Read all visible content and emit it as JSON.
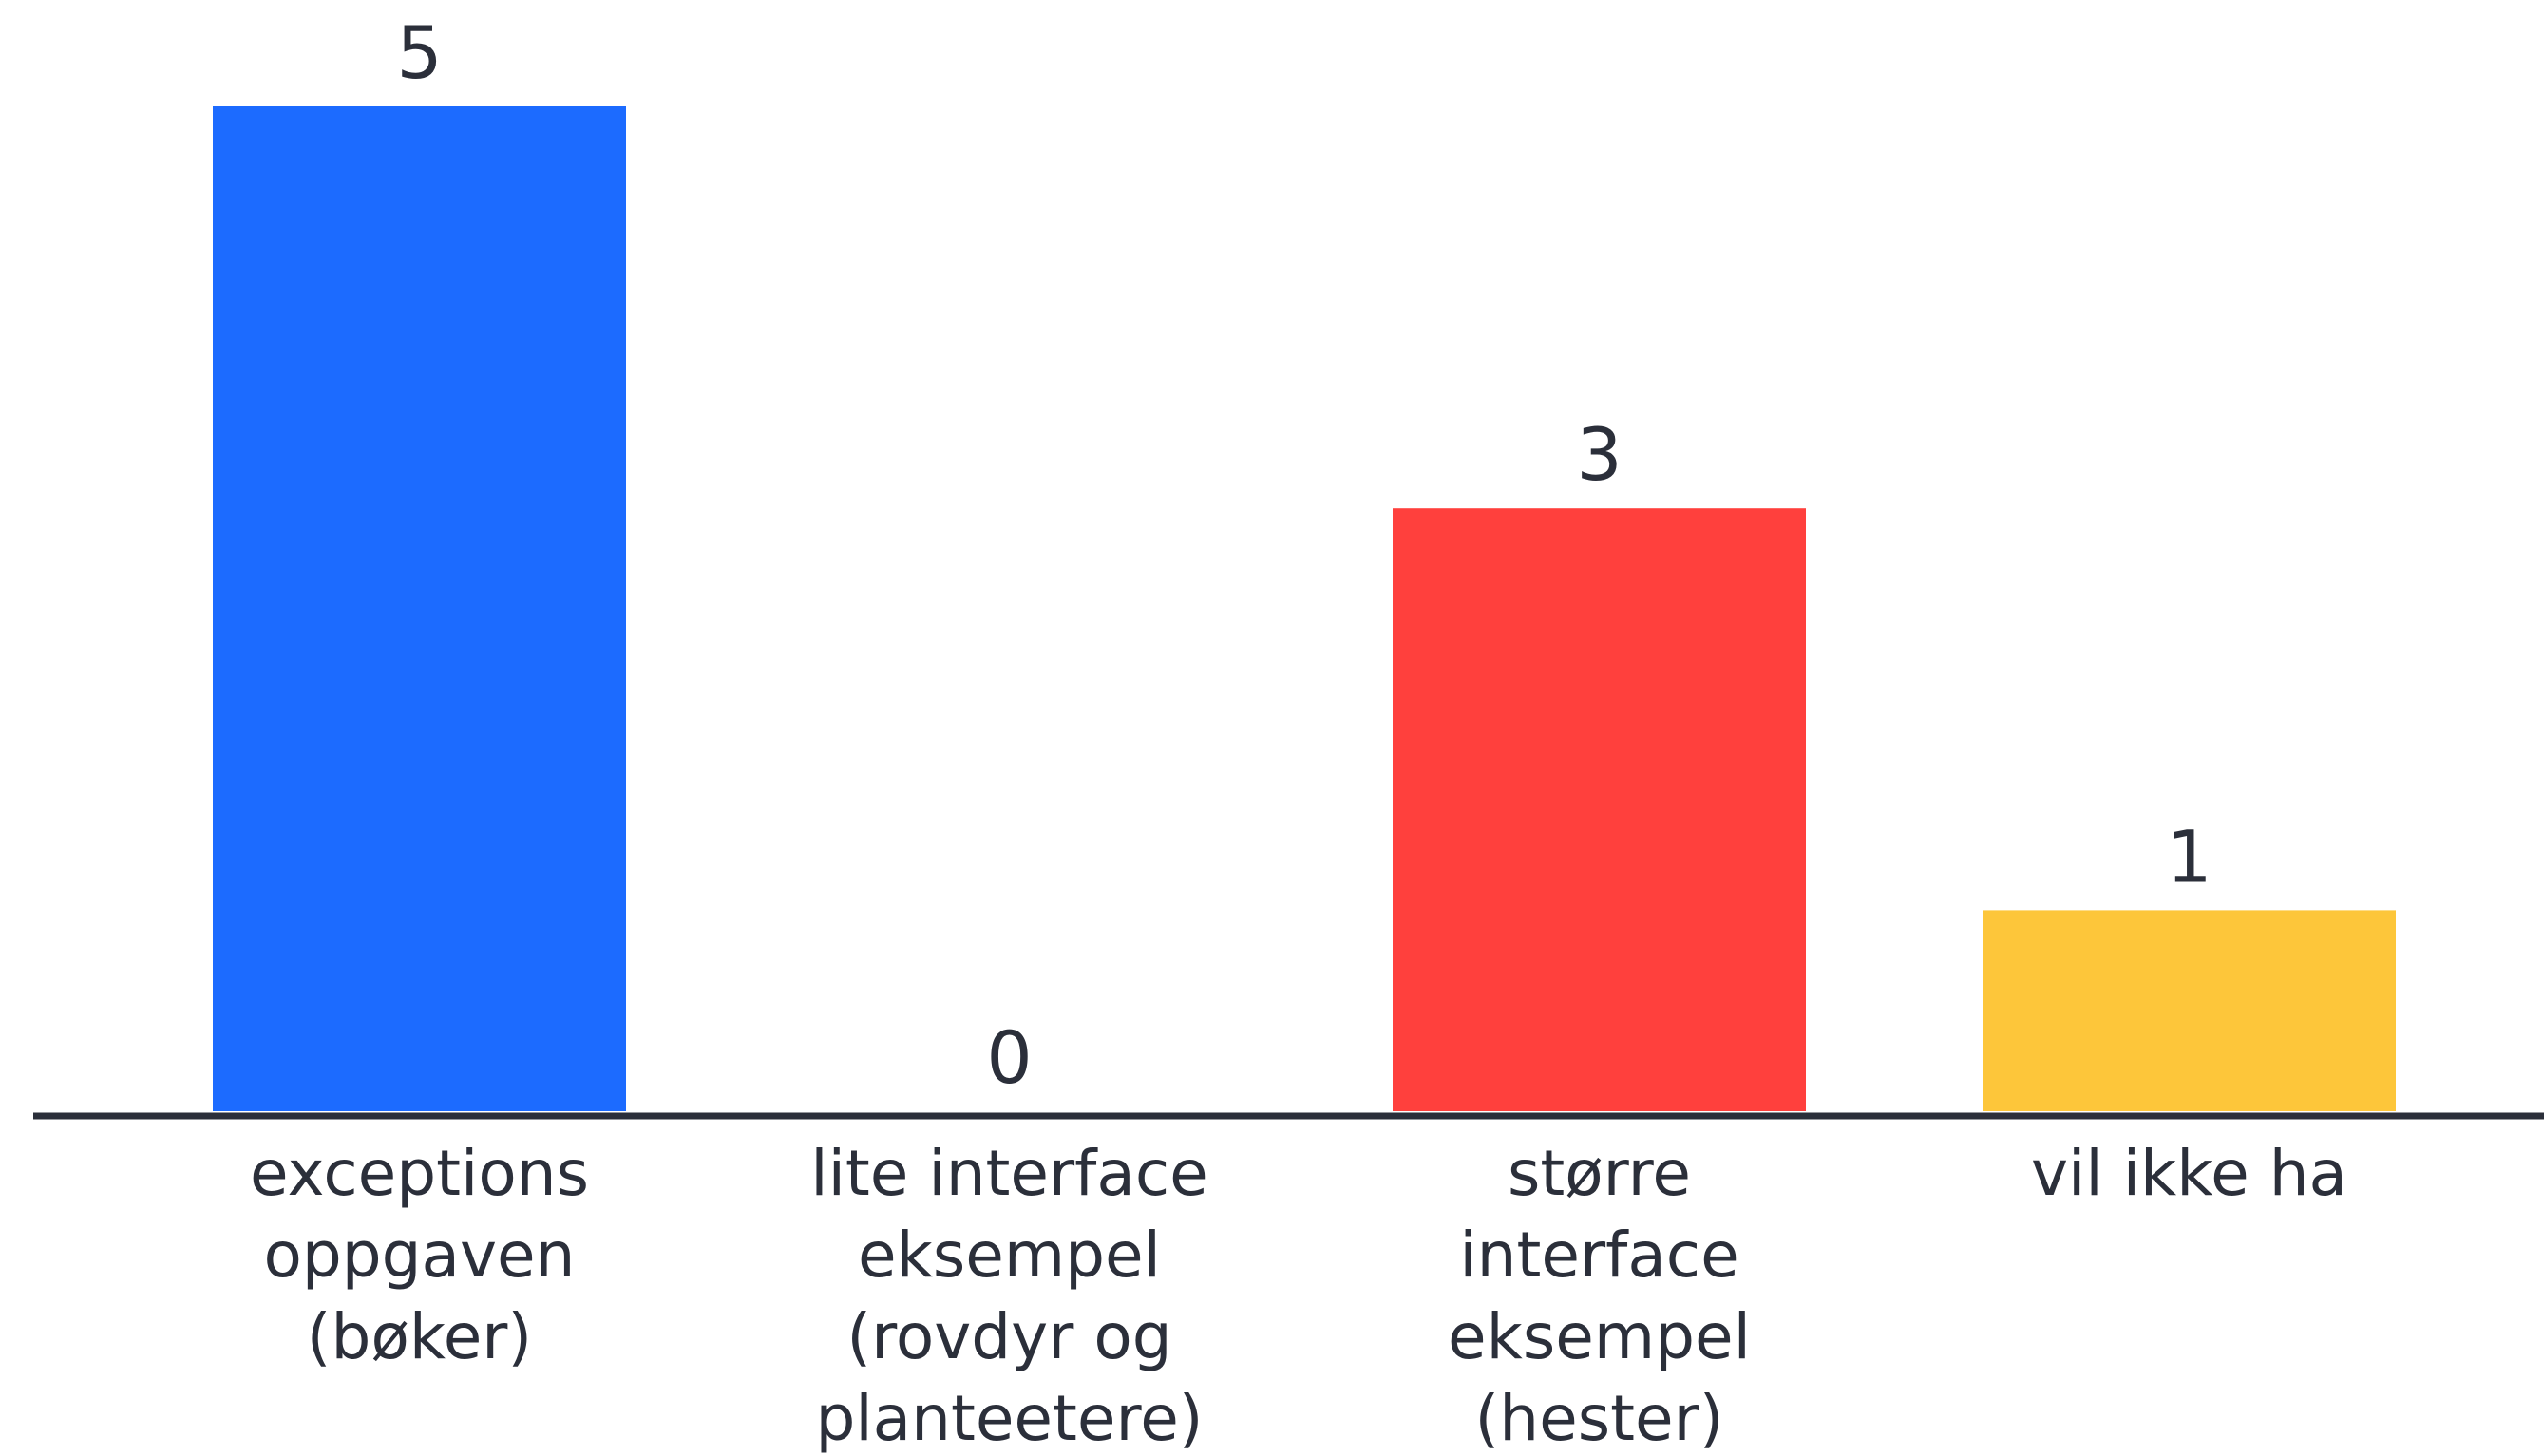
{
  "chart_data": {
    "type": "bar",
    "title": "",
    "xlabel": "",
    "ylabel": "",
    "ylim": [
      0,
      5
    ],
    "grid": false,
    "categories": [
      "exceptions oppgaven (bøker)",
      "lite interface eksempel (rovdyr og planteetere)",
      "større interface eksempel (hester)",
      "vil ikke ha"
    ],
    "category_lines": [
      [
        "exceptions",
        "oppgaven",
        "(bøker)"
      ],
      [
        "lite interface",
        "eksempel",
        "(rovdyr og",
        "planteetere)"
      ],
      [
        "større",
        "interface",
        "eksempel",
        "(hester)"
      ],
      [
        "vil ikke ha"
      ]
    ],
    "values": [
      5,
      0,
      3,
      1
    ],
    "value_labels": [
      "5",
      "0",
      "3",
      "1"
    ],
    "colors": [
      "#1c6bff",
      "#7a8cff",
      "#ff403d",
      "#fdc63a"
    ]
  },
  "style": {
    "axis_color": "#2b2f3a",
    "text_color": "#2b2f3a",
    "background": "#ffffff"
  }
}
